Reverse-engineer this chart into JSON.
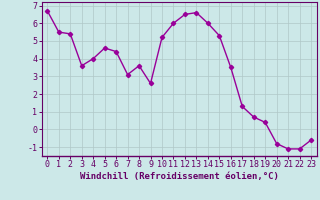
{
  "x": [
    0,
    1,
    2,
    3,
    4,
    5,
    6,
    7,
    8,
    9,
    10,
    11,
    12,
    13,
    14,
    15,
    16,
    17,
    18,
    19,
    20,
    21,
    22,
    23
  ],
  "y": [
    6.7,
    5.5,
    5.4,
    3.6,
    4.0,
    4.6,
    4.4,
    3.1,
    3.6,
    2.6,
    5.2,
    6.0,
    6.5,
    6.6,
    6.0,
    5.3,
    3.5,
    1.3,
    0.7,
    0.4,
    -0.8,
    -1.1,
    -1.1,
    -0.6
  ],
  "line_color": "#990099",
  "marker": "D",
  "markersize": 2.2,
  "linewidth": 1.0,
  "bg_color": "#cce8e8",
  "plot_bg_color": "#cce8e8",
  "grid_color": "#b0c8c8",
  "xlabel": "Windchill (Refroidissement éolien,°C)",
  "xlim": [
    -0.5,
    23.5
  ],
  "ylim": [
    -1.5,
    7.2
  ],
  "yticks": [
    -1,
    0,
    1,
    2,
    3,
    4,
    5,
    6,
    7
  ],
  "xticks": [
    0,
    1,
    2,
    3,
    4,
    5,
    6,
    7,
    8,
    9,
    10,
    11,
    12,
    13,
    14,
    15,
    16,
    17,
    18,
    19,
    20,
    21,
    22,
    23
  ],
  "xlabel_color": "#660066",
  "tick_color": "#660066",
  "axis_color": "#660066",
  "label_fontsize": 6.5,
  "tick_fontsize": 6.0
}
